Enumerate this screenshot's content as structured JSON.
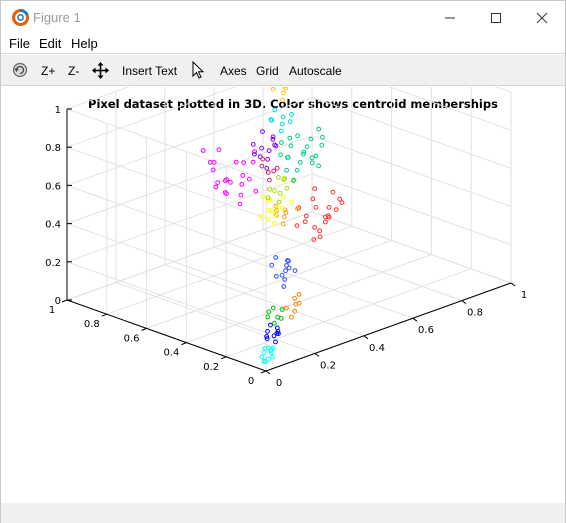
{
  "window": {
    "title": "Figure 1",
    "minimize_icon": "minimize-icon",
    "maximize_icon": "maximize-icon",
    "close_icon": "close-icon"
  },
  "menu": {
    "items": [
      {
        "label": "File"
      },
      {
        "label": "Edit"
      },
      {
        "label": "Help"
      }
    ]
  },
  "toolbar": {
    "rotate_icon": "rotate-icon",
    "zoom_in_label": "Z+",
    "zoom_out_label": "Z-",
    "pan_icon": "pan-arrows-icon",
    "insert_text_label": "Insert Text",
    "select_icon": "cursor-arrow-icon",
    "axes_label": "Axes",
    "grid_label": "Grid",
    "autoscale_label": "Autoscale"
  },
  "chart_data": {
    "type": "scatter",
    "title": "Pixel dataset plotted in 3D. Color shows centroid memberships",
    "xlabel": "",
    "ylabel": "",
    "zlabel": "",
    "xlim": [
      0,
      1
    ],
    "ylim": [
      0,
      1
    ],
    "zlim": [
      0,
      1
    ],
    "x_ticks": [
      "0",
      "0.2",
      "0.4",
      "0.6",
      "0.8",
      "1"
    ],
    "y_ticks": [
      "0",
      "0.2",
      "0.4",
      "0.6",
      "0.8",
      "1"
    ],
    "z_ticks": [
      "0",
      "0.2",
      "0.4",
      "0.6",
      "0.8",
      "1"
    ],
    "grid": true,
    "marker": "open-circle",
    "clusters": [
      {
        "color": "#00ffff",
        "points": [
          [
            0.05,
            0.05,
            0.02
          ],
          [
            0.06,
            0.04,
            0.03
          ],
          [
            0.04,
            0.06,
            0.01
          ],
          [
            0.07,
            0.06,
            0.04
          ],
          [
            0.05,
            0.07,
            0.05
          ],
          [
            0.06,
            0.05,
            0.06
          ],
          [
            0.03,
            0.04,
            0.02
          ],
          [
            0.08,
            0.07,
            0.05
          ],
          [
            0.05,
            0.05,
            0.08
          ],
          [
            0.07,
            0.05,
            0.07
          ],
          [
            0.04,
            0.07,
            0.03
          ],
          [
            0.06,
            0.08,
            0.06
          ]
        ]
      },
      {
        "color": "#0000ff",
        "points": [
          [
            0.12,
            0.1,
            0.06
          ],
          [
            0.13,
            0.12,
            0.08
          ],
          [
            0.11,
            0.13,
            0.07
          ],
          [
            0.14,
            0.11,
            0.09
          ],
          [
            0.12,
            0.14,
            0.1
          ],
          [
            0.15,
            0.13,
            0.08
          ],
          [
            0.13,
            0.1,
            0.11
          ],
          [
            0.1,
            0.12,
            0.09
          ],
          [
            0.16,
            0.14,
            0.1
          ],
          [
            0.14,
            0.15,
            0.12
          ]
        ]
      },
      {
        "color": "#00c000",
        "points": [
          [
            0.18,
            0.18,
            0.1
          ],
          [
            0.2,
            0.17,
            0.12
          ],
          [
            0.17,
            0.2,
            0.13
          ],
          [
            0.21,
            0.2,
            0.11
          ],
          [
            0.19,
            0.22,
            0.14
          ],
          [
            0.22,
            0.19,
            0.15
          ],
          [
            0.2,
            0.21,
            0.16
          ]
        ]
      },
      {
        "color": "#ff8000",
        "points": [
          [
            0.25,
            0.18,
            0.1
          ],
          [
            0.28,
            0.2,
            0.11
          ],
          [
            0.3,
            0.22,
            0.13
          ],
          [
            0.27,
            0.23,
            0.12
          ],
          [
            0.32,
            0.25,
            0.14
          ],
          [
            0.29,
            0.19,
            0.15
          ],
          [
            0.33,
            0.24,
            0.16
          ]
        ]
      },
      {
        "color": "#3050ff",
        "points": [
          [
            0.3,
            0.28,
            0.2
          ],
          [
            0.32,
            0.3,
            0.22
          ],
          [
            0.34,
            0.32,
            0.25
          ],
          [
            0.31,
            0.33,
            0.23
          ],
          [
            0.36,
            0.34,
            0.26
          ],
          [
            0.33,
            0.29,
            0.28
          ],
          [
            0.35,
            0.35,
            0.21
          ],
          [
            0.38,
            0.36,
            0.27
          ],
          [
            0.3,
            0.34,
            0.29
          ],
          [
            0.37,
            0.31,
            0.24
          ],
          [
            0.4,
            0.38,
            0.25
          ],
          [
            0.34,
            0.37,
            0.3
          ]
        ]
      },
      {
        "color": "#ff3030",
        "points": [
          [
            0.52,
            0.4,
            0.3
          ],
          [
            0.56,
            0.42,
            0.32
          ],
          [
            0.6,
            0.44,
            0.34
          ],
          [
            0.58,
            0.47,
            0.31
          ],
          [
            0.62,
            0.45,
            0.36
          ],
          [
            0.55,
            0.48,
            0.35
          ],
          [
            0.64,
            0.49,
            0.33
          ],
          [
            0.59,
            0.41,
            0.38
          ],
          [
            0.66,
            0.46,
            0.37
          ],
          [
            0.53,
            0.45,
            0.4
          ],
          [
            0.61,
            0.5,
            0.39
          ],
          [
            0.57,
            0.43,
            0.28
          ],
          [
            0.68,
            0.52,
            0.35
          ],
          [
            0.63,
            0.54,
            0.41
          ],
          [
            0.7,
            0.48,
            0.38
          ],
          [
            0.54,
            0.5,
            0.42
          ],
          [
            0.65,
            0.43,
            0.44
          ],
          [
            0.72,
            0.55,
            0.4
          ],
          [
            0.5,
            0.46,
            0.36
          ],
          [
            0.67,
            0.58,
            0.43
          ]
        ]
      },
      {
        "color": "#ffa020",
        "points": [
          [
            0.46,
            0.48,
            0.38
          ],
          [
            0.48,
            0.5,
            0.4
          ],
          [
            0.5,
            0.52,
            0.42
          ],
          [
            0.44,
            0.49,
            0.43
          ],
          [
            0.52,
            0.54,
            0.39
          ],
          [
            0.47,
            0.53,
            0.45
          ],
          [
            0.51,
            0.47,
            0.44
          ],
          [
            0.49,
            0.55,
            0.41
          ]
        ]
      },
      {
        "color": "#ffff00",
        "points": [
          [
            0.4,
            0.45,
            0.42
          ],
          [
            0.42,
            0.47,
            0.45
          ],
          [
            0.44,
            0.46,
            0.48
          ],
          [
            0.41,
            0.49,
            0.47
          ],
          [
            0.45,
            0.5,
            0.46
          ],
          [
            0.38,
            0.44,
            0.5
          ],
          [
            0.43,
            0.51,
            0.51
          ],
          [
            0.46,
            0.48,
            0.52
          ],
          [
            0.39,
            0.47,
            0.44
          ],
          [
            0.44,
            0.53,
            0.49
          ],
          [
            0.47,
            0.45,
            0.5
          ],
          [
            0.41,
            0.52,
            0.53
          ],
          [
            0.37,
            0.48,
            0.46
          ]
        ]
      },
      {
        "color": "#a0e000",
        "points": [
          [
            0.5,
            0.55,
            0.45
          ],
          [
            0.52,
            0.57,
            0.48
          ],
          [
            0.54,
            0.56,
            0.5
          ],
          [
            0.48,
            0.58,
            0.47
          ],
          [
            0.56,
            0.6,
            0.52
          ],
          [
            0.51,
            0.61,
            0.49
          ],
          [
            0.55,
            0.54,
            0.54
          ],
          [
            0.58,
            0.62,
            0.51
          ],
          [
            0.53,
            0.59,
            0.55
          ],
          [
            0.49,
            0.56,
            0.51
          ]
        ]
      },
      {
        "color": "#00d080",
        "points": [
          [
            0.6,
            0.6,
            0.5
          ],
          [
            0.63,
            0.62,
            0.53
          ],
          [
            0.66,
            0.64,
            0.55
          ],
          [
            0.62,
            0.66,
            0.52
          ],
          [
            0.68,
            0.65,
            0.58
          ],
          [
            0.64,
            0.68,
            0.57
          ],
          [
            0.7,
            0.63,
            0.56
          ],
          [
            0.61,
            0.64,
            0.6
          ],
          [
            0.72,
            0.68,
            0.59
          ],
          [
            0.67,
            0.7,
            0.61
          ],
          [
            0.74,
            0.66,
            0.54
          ],
          [
            0.65,
            0.61,
            0.62
          ],
          [
            0.76,
            0.71,
            0.6
          ],
          [
            0.69,
            0.73,
            0.63
          ],
          [
            0.62,
            0.69,
            0.59
          ],
          [
            0.71,
            0.61,
            0.52
          ],
          [
            0.78,
            0.68,
            0.57
          ],
          [
            0.73,
            0.74,
            0.62
          ],
          [
            0.66,
            0.58,
            0.57
          ],
          [
            0.75,
            0.64,
            0.64
          ],
          [
            0.8,
            0.72,
            0.63
          ],
          [
            0.68,
            0.76,
            0.6
          ]
        ]
      },
      {
        "color": "#ff00ff",
        "points": [
          [
            0.3,
            0.5,
            0.55
          ],
          [
            0.32,
            0.52,
            0.58
          ],
          [
            0.28,
            0.55,
            0.6
          ],
          [
            0.34,
            0.54,
            0.62
          ],
          [
            0.31,
            0.58,
            0.57
          ],
          [
            0.36,
            0.56,
            0.65
          ],
          [
            0.29,
            0.6,
            0.63
          ],
          [
            0.33,
            0.49,
            0.67
          ],
          [
            0.27,
            0.53,
            0.68
          ],
          [
            0.35,
            0.61,
            0.6
          ],
          [
            0.38,
            0.58,
            0.7
          ],
          [
            0.3,
            0.63,
            0.72
          ],
          [
            0.25,
            0.56,
            0.64
          ],
          [
            0.37,
            0.52,
            0.73
          ],
          [
            0.32,
            0.66,
            0.66
          ],
          [
            0.26,
            0.6,
            0.75
          ],
          [
            0.39,
            0.63,
            0.68
          ],
          [
            0.34,
            0.47,
            0.61
          ],
          [
            0.24,
            0.5,
            0.7
          ],
          [
            0.36,
            0.68,
            0.74
          ],
          [
            0.28,
            0.66,
            0.78
          ],
          [
            0.4,
            0.55,
            0.76
          ]
        ]
      },
      {
        "color": "#8000ff",
        "points": [
          [
            0.45,
            0.55,
            0.65
          ],
          [
            0.47,
            0.57,
            0.68
          ],
          [
            0.5,
            0.6,
            0.7
          ],
          [
            0.48,
            0.62,
            0.67
          ],
          [
            0.52,
            0.59,
            0.72
          ],
          [
            0.46,
            0.63,
            0.74
          ],
          [
            0.51,
            0.65,
            0.69
          ],
          [
            0.49,
            0.56,
            0.75
          ],
          [
            0.54,
            0.63,
            0.73
          ],
          [
            0.44,
            0.6,
            0.71
          ],
          [
            0.53,
            0.67,
            0.76
          ],
          [
            0.5,
            0.58,
            0.78
          ]
        ]
      },
      {
        "color": "#e02060",
        "points": [
          [
            0.42,
            0.5,
            0.62
          ],
          [
            0.44,
            0.53,
            0.64
          ],
          [
            0.46,
            0.51,
            0.66
          ],
          [
            0.43,
            0.55,
            0.67
          ],
          [
            0.47,
            0.54,
            0.63
          ],
          [
            0.45,
            0.57,
            0.69
          ]
        ]
      },
      {
        "color": "#00e0e0",
        "points": [
          [
            0.55,
            0.6,
            0.78
          ],
          [
            0.57,
            0.62,
            0.8
          ],
          [
            0.59,
            0.64,
            0.82
          ],
          [
            0.56,
            0.66,
            0.81
          ],
          [
            0.6,
            0.61,
            0.84
          ],
          [
            0.58,
            0.67,
            0.85
          ],
          [
            0.61,
            0.63,
            0.79
          ],
          [
            0.54,
            0.64,
            0.83
          ]
        ]
      },
      {
        "color": "#ffc000",
        "points": [
          [
            0.62,
            0.68,
            0.88
          ],
          [
            0.64,
            0.7,
            0.9
          ],
          [
            0.66,
            0.72,
            0.92
          ],
          [
            0.63,
            0.74,
            0.91
          ],
          [
            0.67,
            0.71,
            0.94
          ],
          [
            0.65,
            0.75,
            0.95
          ],
          [
            0.68,
            0.73,
            0.97
          ],
          [
            0.64,
            0.69,
            0.93
          ],
          [
            0.69,
            0.76,
            0.99
          ],
          [
            0.66,
            0.7,
            0.96
          ]
        ]
      }
    ]
  }
}
